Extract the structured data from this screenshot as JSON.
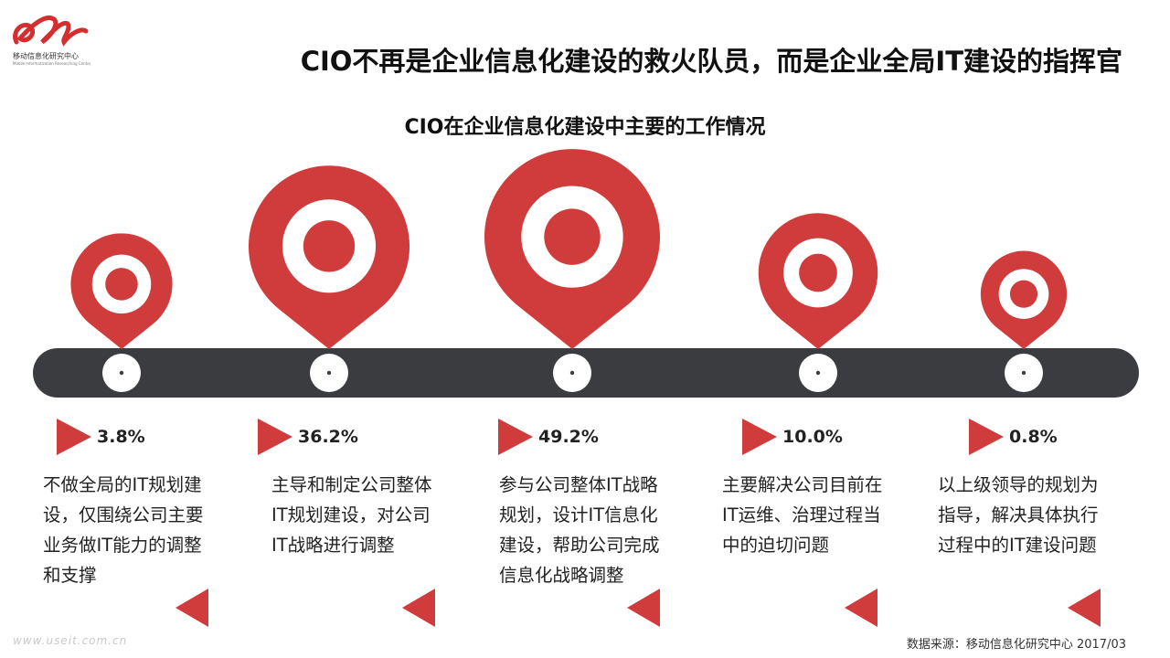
{
  "logo": {
    "name": "移动信息化研究中心",
    "sub": "Mobile Informatization Researching Center",
    "brand_color": "#d32f2f"
  },
  "main_title": "CIO不再是企业信息化建设的救火队员，而是企业全局IT建设的指挥官",
  "chart_data": {
    "type": "bar",
    "title": "CIO在企业信息化建设中主要的工作情况",
    "unit": "%",
    "colors": {
      "pin": "#d03c3c",
      "timeline": "#3a3c40"
    },
    "categories": [
      "不做全局的IT规划建设，仅围绕公司主要业务做IT能力的调整和支撑",
      "主导和制定公司整体IT规划建设，对公司IT战略进行调整",
      "参与公司整体IT战略规划，设计IT信息化建设，帮助公司完成信息化战略调整",
      "主要解决公司目前在IT运维、治理过程当中的迫切问题",
      "以上级领导的规划为指导，解决具体执行过程中的IT建设问题"
    ],
    "values": [
      3.8,
      36.2,
      49.2,
      10.0,
      0.8
    ],
    "labels": [
      "3.8%",
      "36.2%",
      "49.2%",
      "10.0%",
      "0.8%"
    ]
  },
  "footer": {
    "watermark": "www.useit.com.cn",
    "source": "数据来源：移动信息化研究中心 2017/03"
  }
}
